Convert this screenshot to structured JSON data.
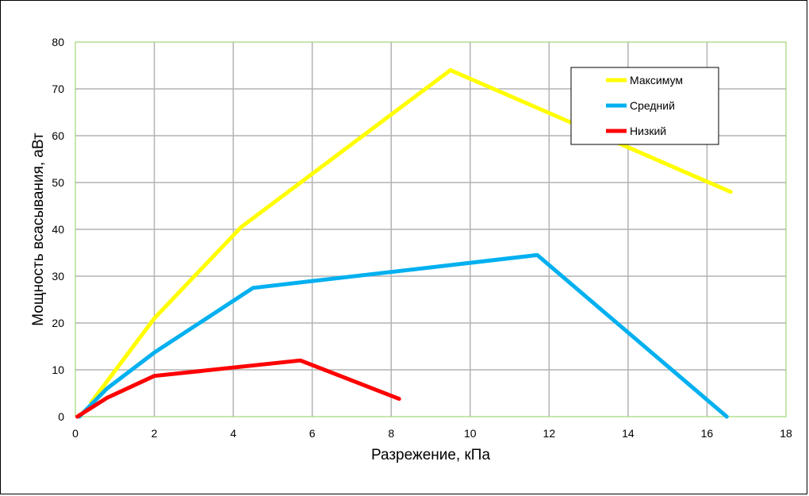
{
  "chart_data": {
    "type": "line",
    "title": "",
    "xlabel": "Разрежение, кПа",
    "ylabel": "Мощность всасывания, аВт",
    "xlim": [
      0,
      18
    ],
    "ylim": [
      0,
      80
    ],
    "xticks": [
      "0",
      "2",
      "4",
      "6",
      "8",
      "10",
      "12",
      "14",
      "16",
      "18"
    ],
    "yticks": [
      "0",
      "10",
      "20",
      "30",
      "40",
      "50",
      "60",
      "70",
      "80"
    ],
    "grid": true,
    "legend_position": "top-right",
    "series": [
      {
        "name": "Максимум",
        "color": "#ffff00",
        "points": [
          [
            0.4,
            3
          ],
          [
            2,
            21
          ],
          [
            4.2,
            40.5
          ],
          [
            9.5,
            74
          ],
          [
            16.6,
            48
          ]
        ]
      },
      {
        "name": "Средний",
        "color": "#00b0f0",
        "points": [
          [
            0.1,
            0
          ],
          [
            0.8,
            6
          ],
          [
            2,
            13.7
          ],
          [
            4.5,
            27.5
          ],
          [
            11.7,
            34.5
          ],
          [
            16.5,
            0
          ]
        ]
      },
      {
        "name": "Низкий",
        "color": "#ff0000",
        "points": [
          [
            0.05,
            0
          ],
          [
            0.8,
            4
          ],
          [
            2,
            8.7
          ],
          [
            5.7,
            12
          ],
          [
            8.2,
            3.8
          ]
        ]
      }
    ]
  }
}
